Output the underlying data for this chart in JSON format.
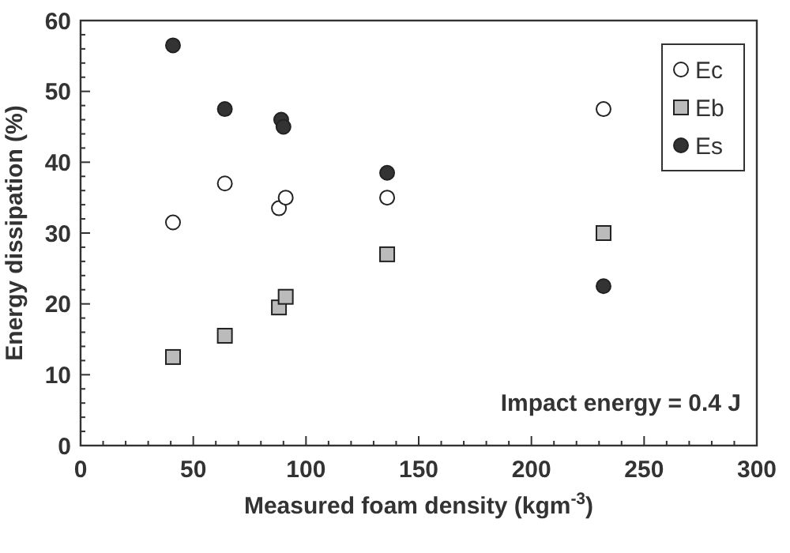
{
  "chart_data": {
    "type": "scatter",
    "xlabel": "Measured foam density (kgm$^{-3}$)",
    "ylabel": "Energy dissipation (%)",
    "xlim": [
      0,
      300
    ],
    "xticks": [
      0,
      50,
      100,
      150,
      200,
      250,
      300
    ],
    "ylim": [
      0,
      60
    ],
    "yticks": [
      0,
      10,
      20,
      30,
      40,
      50,
      60
    ],
    "grid": false,
    "legend": "top right",
    "annotations": [
      "Impact energy = 0.4 J"
    ],
    "series": [
      {
        "name": "Ec",
        "color": "#ffffff",
        "marker": "circle",
        "x": [
          41,
          64,
          88,
          91,
          136,
          232
        ],
        "values": [
          31.5,
          37,
          33.5,
          35,
          35,
          47.5
        ]
      },
      {
        "name": "Eb",
        "color": "#bbbbbb",
        "marker": "square",
        "x": [
          41,
          64,
          88,
          91,
          136,
          232
        ],
        "values": [
          12.5,
          15.5,
          19.5,
          21,
          27,
          30
        ]
      },
      {
        "name": "Es",
        "color": "#333333",
        "marker": "circle",
        "x": [
          41,
          64,
          89,
          90,
          136,
          232
        ],
        "values": [
          56.5,
          47.5,
          46,
          45,
          38.5,
          22.5
        ]
      }
    ]
  }
}
